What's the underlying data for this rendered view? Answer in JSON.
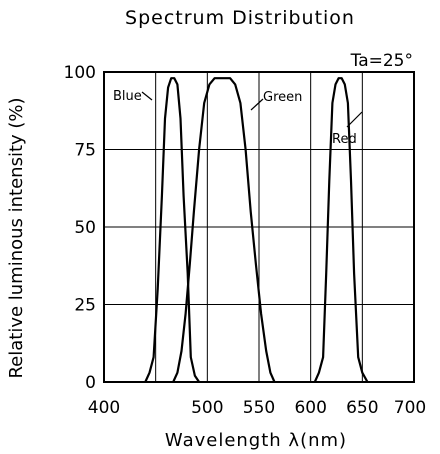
{
  "chart_data": {
    "type": "line",
    "title": "Spectrum Distribution",
    "xlabel": "Wavelength λ(nm)",
    "ylabel": "Relative luminous intensity (%)",
    "annotation": "Ta=25°",
    "xlim": [
      400,
      700
    ],
    "ylim": [
      0,
      100
    ],
    "xticks": [
      400,
      450,
      500,
      550,
      600,
      650,
      700
    ],
    "xtick_labels": [
      "400",
      "",
      "500",
      "550",
      "600",
      "650",
      "700"
    ],
    "yticks": [
      0,
      25,
      50,
      75,
      100
    ],
    "grid": true,
    "series": [
      {
        "name": "Blue",
        "x": [
          440,
          444,
          448,
          452,
          456,
          459,
          462,
          465,
          468,
          471,
          474,
          477,
          481,
          484,
          488,
          492
        ],
        "y": [
          0,
          3,
          8,
          30,
          60,
          85,
          95,
          98,
          98,
          96,
          85,
          60,
          35,
          8,
          2,
          0
        ]
      },
      {
        "name": "Green",
        "x": [
          467,
          471,
          475,
          479,
          483,
          487,
          492,
          497,
          502,
          507,
          512,
          517,
          522,
          527,
          532,
          537,
          542,
          547,
          552,
          557,
          561,
          565
        ],
        "y": [
          0,
          3,
          10,
          22,
          38,
          55,
          75,
          90,
          96,
          98,
          98,
          98,
          98,
          96,
          90,
          75,
          55,
          38,
          22,
          10,
          3,
          0
        ]
      },
      {
        "name": "Red",
        "x": [
          604,
          608,
          612,
          615,
          618,
          621,
          624,
          627,
          630,
          633,
          636,
          639,
          642,
          646,
          650,
          655
        ],
        "y": [
          0,
          3,
          8,
          35,
          65,
          90,
          96,
          98,
          98,
          96,
          90,
          65,
          35,
          8,
          3,
          0
        ]
      }
    ]
  }
}
